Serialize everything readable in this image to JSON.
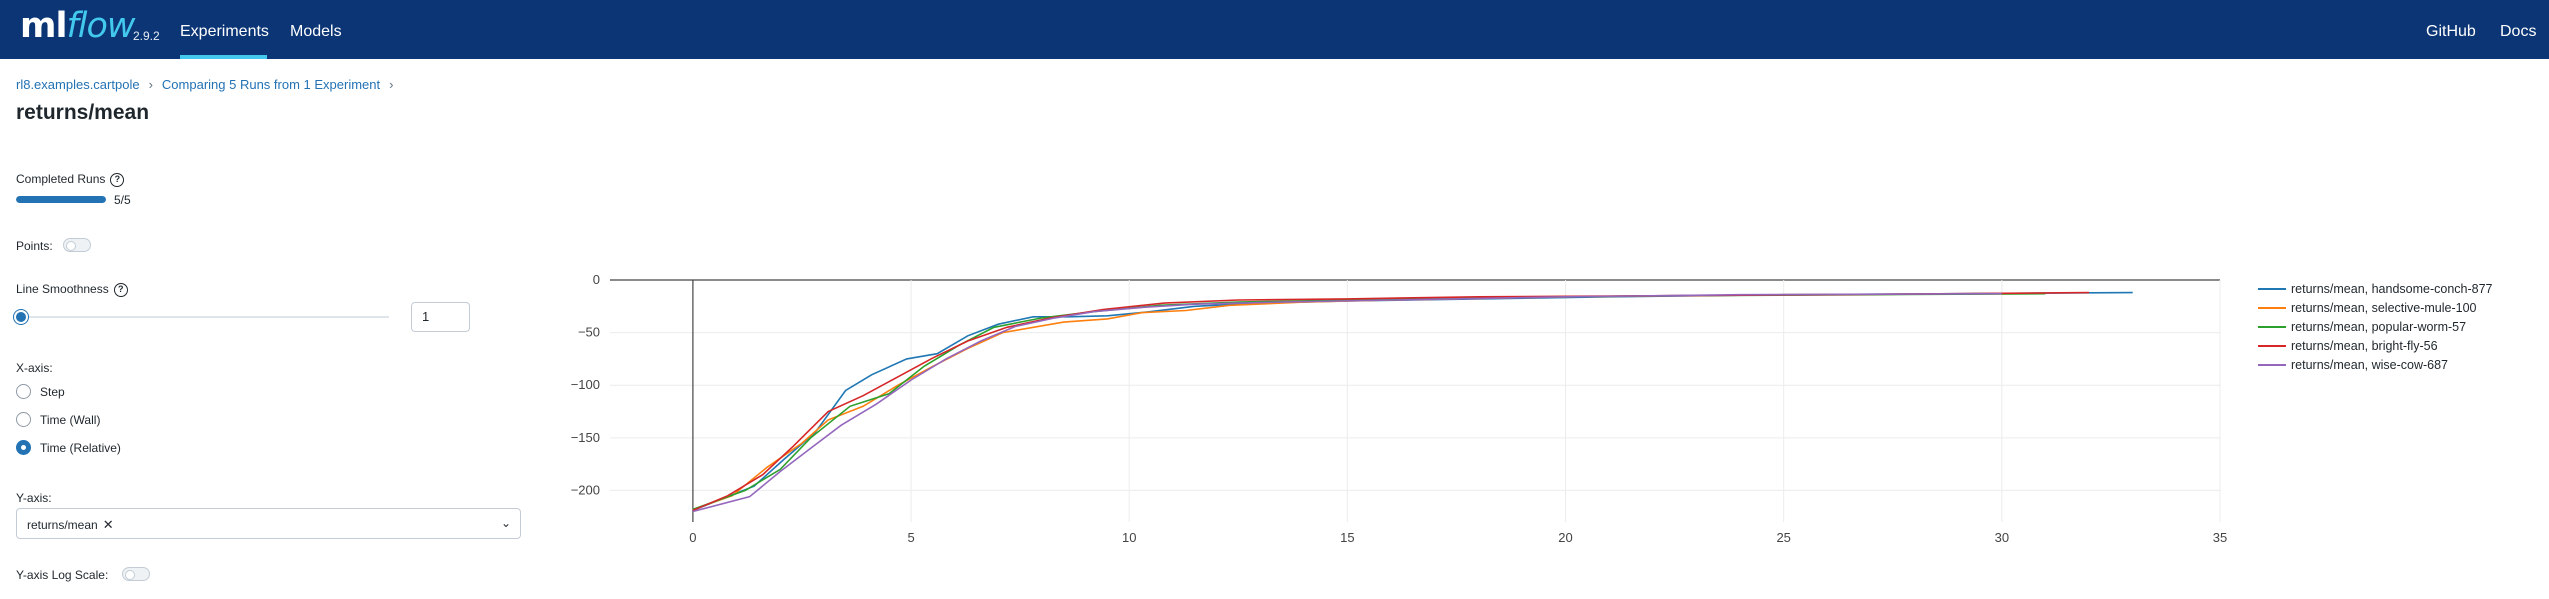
{
  "header": {
    "logo_ml": "ml",
    "logo_flow": "flow",
    "version": "2.9.2",
    "nav": [
      "Experiments",
      "Models"
    ],
    "right_links": [
      "GitHub",
      "Docs"
    ],
    "colors": {
      "bar": "#0b3574",
      "accent": "#43c9ed"
    }
  },
  "breadcrumb": {
    "items": [
      "rl8.examples.cartpole",
      "Comparing 5 Runs from 1 Experiment"
    ],
    "separator": "›"
  },
  "page_title": "returns/mean",
  "controls": {
    "completed_runs_label": "Completed Runs",
    "completed_runs_progress": "5/5",
    "completed_fraction": 1.0,
    "points_label": "Points:",
    "points_enabled": false,
    "smoothness_label": "Line Smoothness",
    "smoothness_value": "1",
    "xaxis_label": "X-axis:",
    "xaxis_options": [
      "Step",
      "Time (Wall)",
      "Time (Relative)"
    ],
    "xaxis_selected": "Time (Relative)",
    "yaxis_label": "Y-axis:",
    "yaxis_selected": "returns/mean",
    "close_icon": "close-icon",
    "chevron_icon": "chevron-down-icon",
    "help_icon": "question-circle-icon",
    "ylog_label": "Y-axis Log Scale:",
    "ylog_enabled": false
  },
  "chart_data": {
    "type": "line",
    "title": "",
    "xlabel": "",
    "ylabel": "",
    "xlim": [
      -1.9,
      35
    ],
    "ylim": [
      -230,
      0
    ],
    "xticks": [
      "0",
      "5",
      "10",
      "15",
      "20",
      "25",
      "30",
      "35"
    ],
    "yticks": [
      "0",
      "−50",
      "−100",
      "−150",
      "−200"
    ],
    "grid": true,
    "legend_position": "right",
    "series": [
      {
        "name": "returns/mean, handsome-conch-877",
        "color": "#1f77b4",
        "x": [
          0,
          1.4,
          2.1,
          2.8,
          3.5,
          4.1,
          4.9,
          5.6,
          6.3,
          7,
          7.8,
          8.6,
          9.5,
          10.5,
          11.5,
          13,
          15,
          18,
          21,
          25,
          29,
          33
        ],
        "y": [
          -219,
          -196,
          -170,
          -145,
          -105,
          -90,
          -75,
          -70,
          -53,
          -42,
          -35,
          -35,
          -34,
          -30,
          -25,
          -22,
          -20,
          -18,
          -16,
          -14,
          -13,
          -12
        ]
      },
      {
        "name": "returns/mean, selective-mule-100",
        "color": "#ff7f0e",
        "x": [
          0,
          0.9,
          1.7,
          2.5,
          3.1,
          3.9,
          4.7,
          5.5,
          6.3,
          7.1,
          8.5,
          9.5,
          10.3,
          11.3,
          12.3,
          14,
          16,
          20,
          25,
          31
        ],
        "y": [
          -218,
          -205,
          -178,
          -155,
          -133,
          -120,
          -100,
          -82,
          -65,
          -50,
          -40,
          -37,
          -31,
          -29,
          -24,
          -21,
          -19,
          -16,
          -14,
          -13
        ]
      },
      {
        "name": "returns/mean, popular-worm-57",
        "color": "#2ca02c",
        "x": [
          0,
          1.2,
          2.0,
          2.7,
          3.6,
          4.5,
          5.3,
          6.1,
          6.9,
          8,
          9.2,
          10.7,
          12.5,
          15,
          18,
          22,
          27,
          31
        ],
        "y": [
          -218,
          -200,
          -180,
          -150,
          -120,
          -108,
          -82,
          -62,
          -45,
          -36,
          -30,
          -24,
          -21,
          -19,
          -17,
          -15,
          -14,
          -13
        ]
      },
      {
        "name": "returns/mean, bright-fly-56",
        "color": "#d62728",
        "x": [
          0,
          0.8,
          1.6,
          2.3,
          3.1,
          3.9,
          4.7,
          5.5,
          6.3,
          7.2,
          8.2,
          9.4,
          10.8,
          12.5,
          15,
          18,
          22,
          26,
          32
        ],
        "y": [
          -219,
          -205,
          -185,
          -158,
          -125,
          -110,
          -92,
          -74,
          -58,
          -45,
          -36,
          -28,
          -22,
          -19,
          -18,
          -16,
          -15,
          -14,
          -12
        ]
      },
      {
        "name": "returns/mean, wise-cow-687",
        "color": "#9467bd",
        "x": [
          0,
          1.3,
          2.0,
          2.7,
          3.4,
          4.2,
          5.0,
          5.8,
          6.6,
          7.4,
          8.3,
          9.2,
          10.3,
          11.5,
          13.5,
          16,
          20,
          24,
          30
        ],
        "y": [
          -220,
          -206,
          -182,
          -160,
          -138,
          -118,
          -95,
          -75,
          -58,
          -44,
          -36,
          -30,
          -26,
          -23,
          -21,
          -19,
          -16,
          -14,
          -13
        ]
      }
    ]
  }
}
